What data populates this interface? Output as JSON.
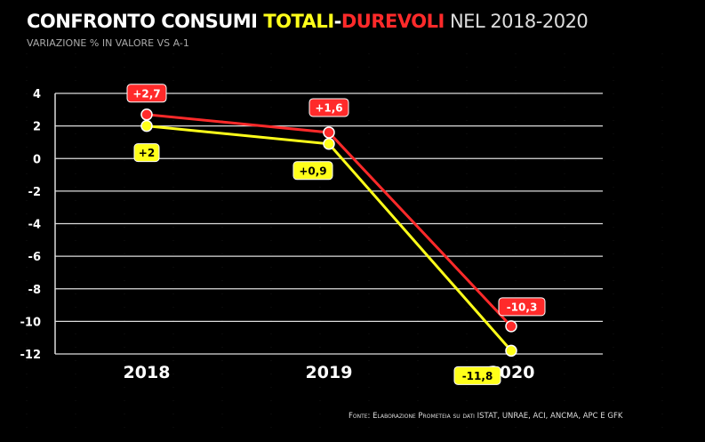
{
  "title": {
    "part1": "CONFRONTO CONSUMI ",
    "part2": "TOTALI",
    "dash": "-",
    "part3": "DUREVOLI",
    "part4": " NEL 2018-2020"
  },
  "subtitle": "VARIAZIONE % IN VALORE VS A-1",
  "source": "Fonte: Elaborazione Prometeia su dati ISTAT, UNRAE, ACI, ANCMA, APC E GFK",
  "colors": {
    "totali": "#ffff1a",
    "durevoli": "#ff2a2a",
    "background": "#000000",
    "grid": "#dddddd"
  },
  "chart_data": {
    "type": "line",
    "categories": [
      "2018",
      "2019",
      "2020"
    ],
    "ylim": [
      -12,
      4
    ],
    "yticks": [
      "4",
      "2",
      "0",
      "-2",
      "-4",
      "-6",
      "-8",
      "-10",
      "-12"
    ],
    "grid": true,
    "series": [
      {
        "name": "DUREVOLI",
        "color": "#ff2a2a",
        "values": [
          2.7,
          1.6,
          -10.3
        ],
        "labels": [
          "+2,7",
          "+1,6",
          "-10,3"
        ]
      },
      {
        "name": "TOTALI",
        "color": "#ffff1a",
        "values": [
          2,
          0.9,
          -11.8
        ],
        "labels": [
          "+2",
          "+0,9",
          "-11,8"
        ]
      }
    ]
  }
}
